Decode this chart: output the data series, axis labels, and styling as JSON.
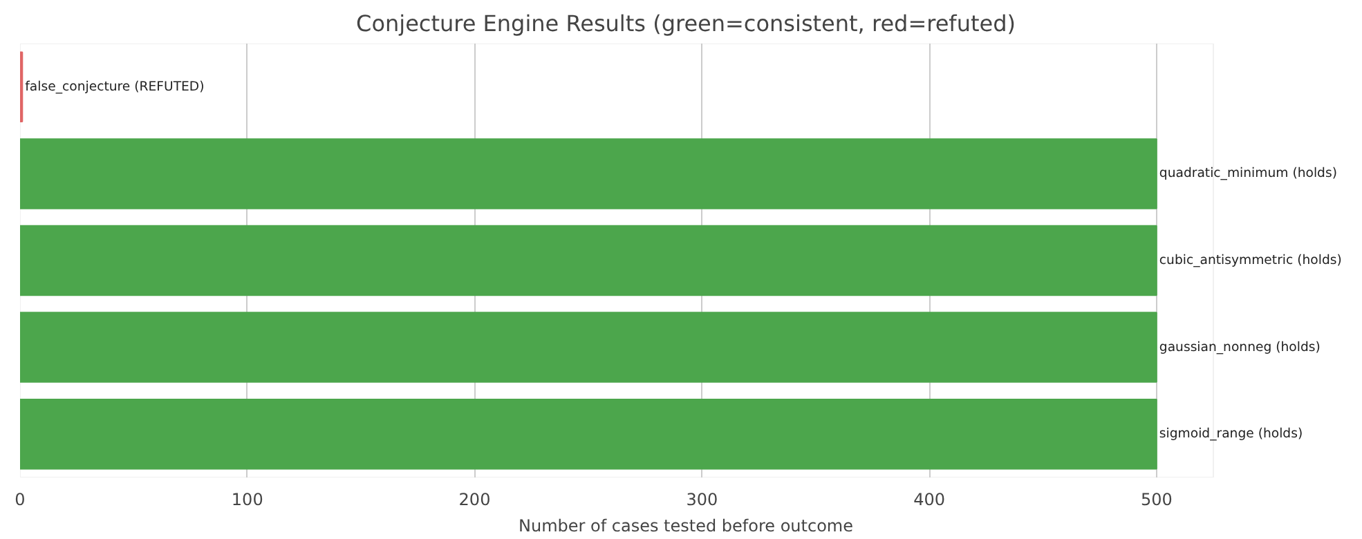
{
  "chart_data": {
    "type": "bar",
    "orientation": "horizontal",
    "title": "Conjecture Engine Results (green=consistent, red=refuted)",
    "xlabel": "Number of cases tested before outcome",
    "categories": [
      "false_conjecture (REFUTED)",
      "quadratic_minimum (holds)",
      "cubic_antisymmetric (holds)",
      "gaussian_nonneg (holds)",
      "sigmoid_range (holds)"
    ],
    "values": [
      1,
      500,
      500,
      500,
      500
    ],
    "colors": [
      "#e06666",
      "#4ca64c",
      "#4ca64c",
      "#4ca64c",
      "#4ca64c"
    ],
    "xlim": [
      0,
      525
    ],
    "xticks": [
      0,
      100,
      200,
      300,
      400,
      500
    ],
    "grid": "x",
    "tick_labels": "x"
  }
}
